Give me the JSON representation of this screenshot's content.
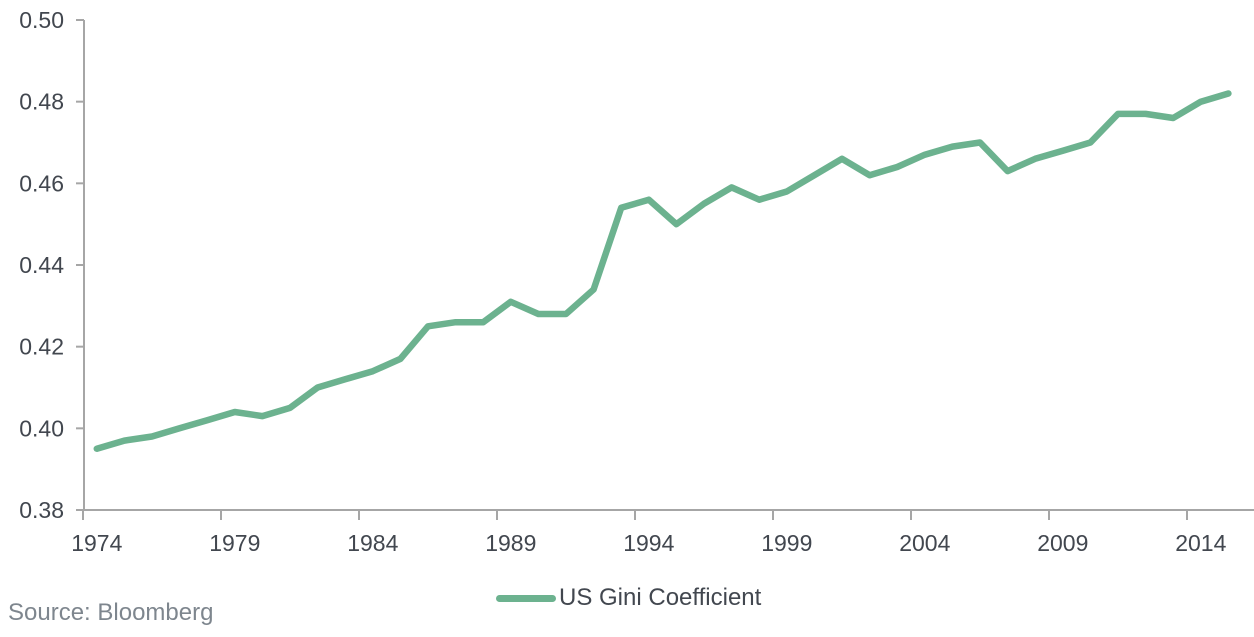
{
  "source": {
    "text": "Source: Bloomberg"
  },
  "legend": {
    "label": "US Gini Coefficient"
  },
  "colors": {
    "line": "#6CB28F",
    "axis": "#A6A6A6",
    "tick_label": "#42474F",
    "legend_text": "#42474F",
    "source_text": "#7E868E",
    "background": "#FFFFFF"
  },
  "chart_data": {
    "type": "line",
    "title": "",
    "xlabel": "",
    "ylabel": "",
    "grid": false,
    "legend_position": "bottom-center",
    "ylim": [
      0.38,
      0.5
    ],
    "y_ticks": [
      0.38,
      0.4,
      0.42,
      0.44,
      0.46,
      0.48,
      0.5
    ],
    "x_ticks": [
      1974,
      1979,
      1984,
      1989,
      1994,
      1999,
      2004,
      2009,
      2014
    ],
    "x": [
      1974,
      1975,
      1976,
      1977,
      1978,
      1979,
      1980,
      1981,
      1982,
      1983,
      1984,
      1985,
      1986,
      1987,
      1988,
      1989,
      1990,
      1991,
      1992,
      1993,
      1994,
      1995,
      1996,
      1997,
      1998,
      1999,
      2000,
      2001,
      2002,
      2003,
      2004,
      2005,
      2006,
      2007,
      2008,
      2009,
      2010,
      2011,
      2012,
      2013,
      2014,
      2015
    ],
    "series": [
      {
        "name": "US Gini Coefficient",
        "values": [
          0.395,
          0.397,
          0.398,
          0.4,
          0.402,
          0.404,
          0.403,
          0.405,
          0.41,
          0.412,
          0.414,
          0.417,
          0.425,
          0.426,
          0.426,
          0.431,
          0.428,
          0.428,
          0.434,
          0.454,
          0.456,
          0.45,
          0.455,
          0.459,
          0.456,
          0.458,
          0.462,
          0.466,
          0.462,
          0.464,
          0.467,
          0.469,
          0.47,
          0.463,
          0.466,
          0.468,
          0.47,
          0.477,
          0.477,
          0.476,
          0.48,
          0.482
        ]
      }
    ]
  }
}
